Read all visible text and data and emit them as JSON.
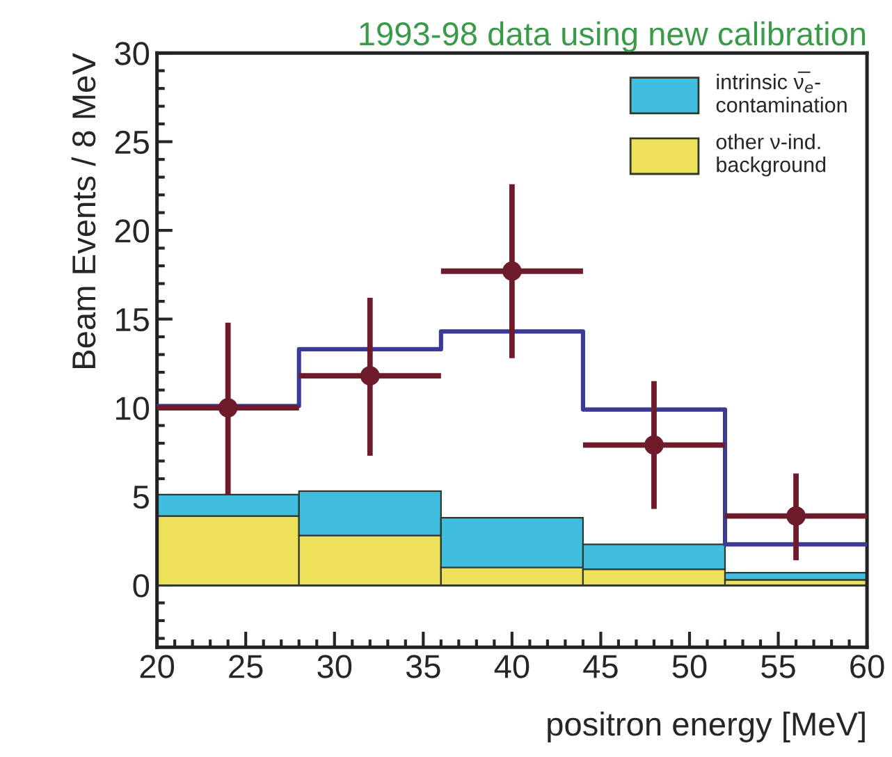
{
  "chart_data": {
    "type": "bar",
    "title": "1993-98 data using new calibration",
    "xlabel": "positron energy [MeV]",
    "ylabel": "Beam Events / 8 MeV",
    "x": [
      24,
      32,
      40,
      48,
      56
    ],
    "stacked": true,
    "series": [
      {
        "name": "other ν-ind.\nbackground",
        "color": "#ede05a",
        "values": [
          3.9,
          2.8,
          1.0,
          0.9,
          0.3
        ]
      },
      {
        "name": "intrinsic ν̅$_{e}$-\ncontamination",
        "color": "#41bde0",
        "values": [
          1.2,
          2.5,
          2.8,
          1.4,
          0.4
        ]
      },
      {
        "type": "step",
        "color": "#3b3b96",
        "x": [
          20,
          28,
          36,
          44,
          52,
          60
        ],
        "values": [
          10.1,
          13.3,
          14.3,
          9.9,
          2.3,
          2.3
        ]
      },
      {
        "type": "scatter",
        "color": "#6e1c2c",
        "x": [
          24,
          32,
          40,
          48,
          56
        ],
        "values": [
          10.0,
          11.8,
          17.7,
          7.9,
          3.9
        ],
        "errors": [
          [
            5.1,
            14.8
          ],
          [
            7.3,
            16.2
          ],
          [
            12.8,
            22.6
          ],
          [
            4.3,
            11.5
          ],
          [
            1.4,
            6.3
          ]
        ],
        "xerrors": [
          4,
          4,
          4,
          4,
          4
        ],
        "marker": "circle"
      }
    ],
    "ref_lines": [
      {
        "axis": "y",
        "value": 0,
        "color": "#3a3a2a"
      }
    ],
    "xlim": [
      20,
      60
    ],
    "xticks": [
      20,
      25,
      30,
      35,
      40,
      45,
      50,
      55,
      60
    ],
    "ylim": [
      -3.5,
      30
    ],
    "yticks": [
      0,
      5,
      10,
      15,
      20,
      25,
      30
    ],
    "grid": false,
    "legend": "top right"
  }
}
